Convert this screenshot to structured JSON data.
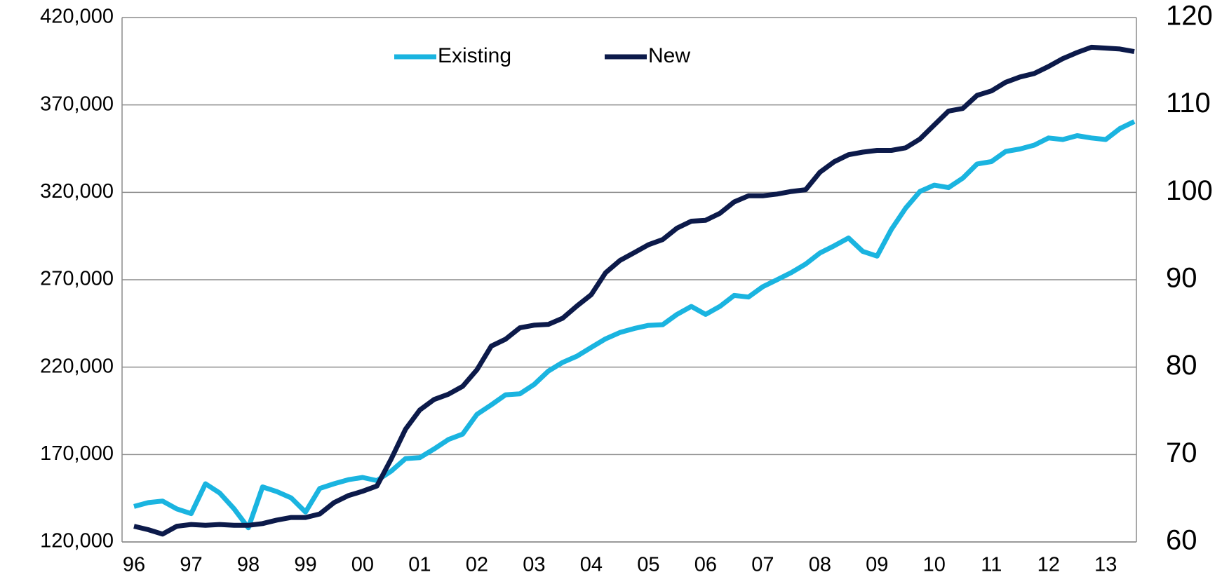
{
  "chart_data": {
    "type": "line",
    "categories": [
      "96",
      null,
      null,
      null,
      "97",
      null,
      null,
      null,
      "98",
      null,
      null,
      null,
      "99",
      null,
      null,
      null,
      "00",
      null,
      null,
      null,
      "01",
      null,
      null,
      null,
      "02",
      null,
      null,
      null,
      "03",
      null,
      null,
      null,
      "04",
      null,
      null,
      null,
      "05",
      null,
      null,
      null,
      "06",
      null,
      null,
      null,
      "07",
      null,
      null,
      null,
      "08",
      null,
      null,
      null,
      "09",
      null,
      null,
      null,
      "10",
      null,
      null,
      null,
      "11",
      null,
      null,
      null,
      "12",
      null,
      null,
      null,
      "13",
      null,
      null
    ],
    "series": [
      {
        "name": "Existing",
        "color": "#1ab4e0",
        "axis": "y",
        "values": [
          140300,
          142500,
          143400,
          138900,
          136200,
          153300,
          148000,
          139000,
          128100,
          151500,
          148800,
          145200,
          137100,
          150600,
          153300,
          155600,
          156900,
          155100,
          160500,
          167700,
          168200,
          173200,
          178600,
          181700,
          193000,
          198400,
          204200,
          204700,
          210100,
          217800,
          222700,
          226300,
          231300,
          236200,
          239800,
          242100,
          243900,
          244300,
          250200,
          254700,
          250200,
          254700,
          261000,
          260100,
          266000,
          270000,
          274100,
          279000,
          285300,
          289400,
          293900,
          286200,
          283500,
          298800,
          311000,
          320500,
          324100,
          322700,
          328100,
          336200,
          337600,
          343400,
          344800,
          347000,
          351100,
          350200,
          352400,
          351100,
          350200,
          356500,
          360500
        ]
      },
      {
        "name": "New",
        "color": "#0c1a4a",
        "axis": "y2",
        "values": [
          61.8,
          61.4,
          60.9,
          61.8,
          62.0,
          61.9,
          62.0,
          61.9,
          61.9,
          62.1,
          62.5,
          62.8,
          62.8,
          63.2,
          64.5,
          65.3,
          65.8,
          66.4,
          69.5,
          72.9,
          75.1,
          76.3,
          76.9,
          77.8,
          79.7,
          82.4,
          83.2,
          84.5,
          84.8,
          84.9,
          85.6,
          87.0,
          88.3,
          90.8,
          92.2,
          93.1,
          94.0,
          94.6,
          95.9,
          96.7,
          96.8,
          97.6,
          98.9,
          99.6,
          99.6,
          99.8,
          100.1,
          100.3,
          102.3,
          103.5,
          104.3,
          104.6,
          104.8,
          104.8,
          105.1,
          106.1,
          107.7,
          109.3,
          109.6,
          111.1,
          111.6,
          112.6,
          113.2,
          113.6,
          114.4,
          115.3,
          116.0,
          116.6,
          116.5,
          116.4,
          116.1
        ]
      }
    ],
    "ylim": [
      120000,
      420000
    ],
    "yticks": [
      {
        "value": 120000,
        "label": "120,000"
      },
      {
        "value": 170000,
        "label": "170,000"
      },
      {
        "value": 220000,
        "label": "220,000"
      },
      {
        "value": 270000,
        "label": "270,000"
      },
      {
        "value": 320000,
        "label": "320,000"
      },
      {
        "value": 370000,
        "label": "370,000"
      },
      {
        "value": 420000,
        "label": "420,000"
      }
    ],
    "y2lim": [
      60,
      120
    ],
    "y2ticks": [
      60,
      70,
      80,
      90,
      100,
      110,
      120
    ],
    "grid": true,
    "legend": "top"
  }
}
